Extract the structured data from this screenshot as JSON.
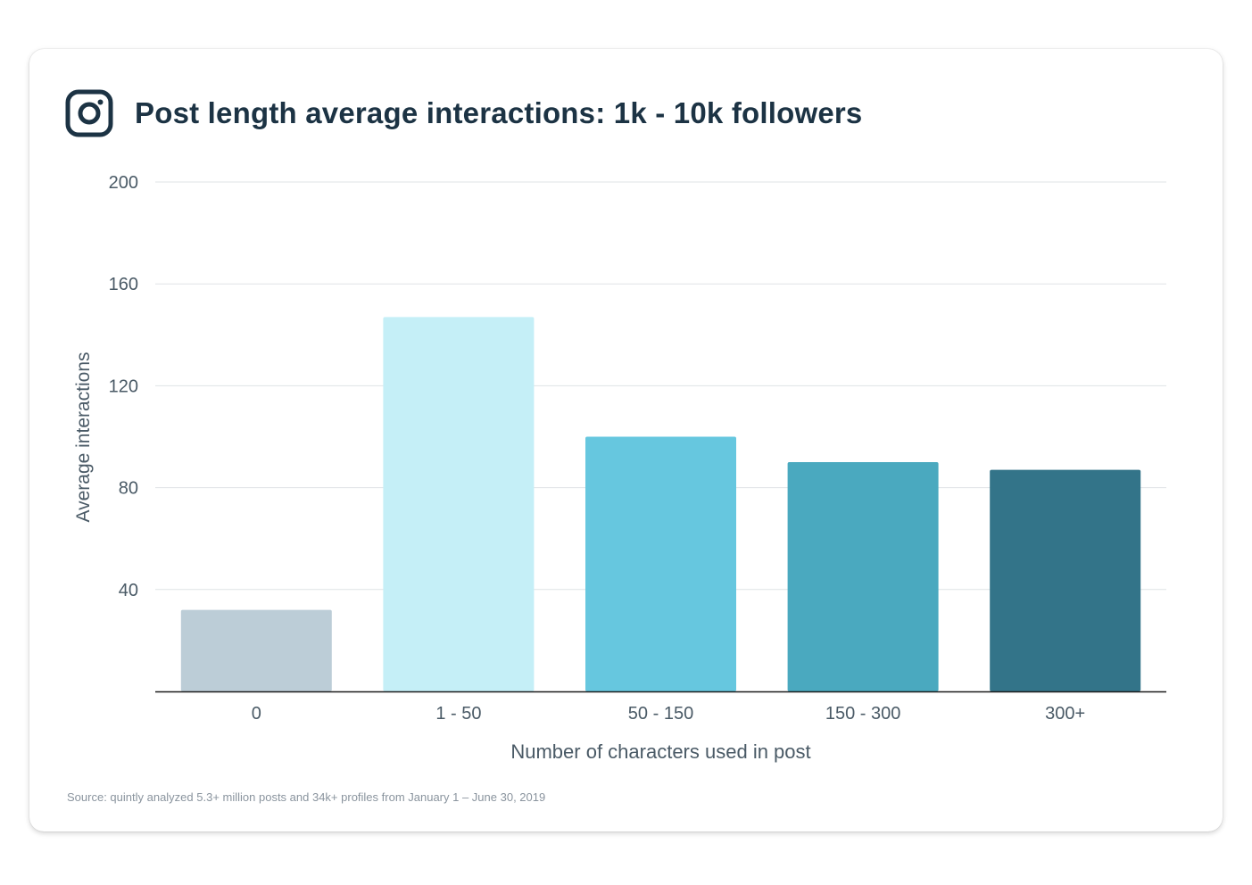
{
  "header": {
    "title": "Post length average interactions: 1k - 10k followers",
    "icon": "instagram-icon"
  },
  "chart_data": {
    "type": "bar",
    "title": "Post length average interactions: 1k - 10k followers",
    "xlabel": "Number of characters used in post",
    "ylabel": "Average interactions",
    "categories": [
      "0",
      "1 - 50",
      "50 - 150",
      "150 - 300",
      "300+"
    ],
    "values": [
      32,
      147,
      100,
      90,
      87
    ],
    "colors": [
      "#bccdd7",
      "#c5eff7",
      "#66c7df",
      "#4aa9bf",
      "#337489"
    ],
    "yticks": [
      40,
      80,
      120,
      160,
      200
    ],
    "ylim": [
      0,
      200
    ],
    "grid": true,
    "legend": "none"
  },
  "footer": {
    "source": "Source: quintly analyzed 5.3+ million posts and 34k+ profiles from January 1 – June 30, 2019"
  },
  "colors": {
    "title": "#1c3344",
    "axis_text": "#4a5a66",
    "grid": "#dfe3e6",
    "baseline": "#1c1c1c"
  }
}
